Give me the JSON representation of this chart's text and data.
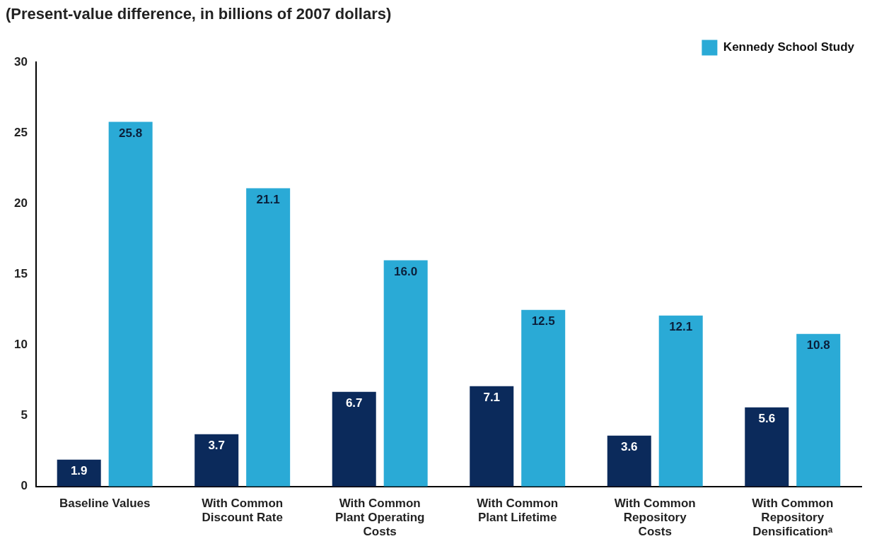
{
  "chart_data": {
    "type": "bar",
    "title": "(Present-value difference, in billions of 2007 dollars)",
    "categories": [
      "Baseline Values",
      "With Common Discount Rate",
      "With Common Plant Operating Costs",
      "With Common Plant Lifetime",
      "With Common Repository Costs",
      "With Common Repository Densificationᵃ"
    ],
    "series": [
      {
        "color": "#0b2a5b",
        "values": [
          1.9,
          3.7,
          6.7,
          7.1,
          3.6,
          5.6
        ],
        "value_labels": [
          "1.9",
          "3.7",
          "6.7",
          "7.1",
          "3.6",
          "5.6"
        ]
      },
      {
        "name": "Kennedy School Study",
        "color": "#2aaad6",
        "values": [
          25.8,
          21.1,
          16.0,
          12.5,
          12.1,
          10.8
        ],
        "value_labels": [
          "25.8",
          "21.1",
          "16.0",
          "12.5",
          "12.1",
          "10.8"
        ]
      }
    ],
    "ylim": [
      0,
      30
    ],
    "yticks": [
      0,
      5,
      10,
      15,
      20,
      25,
      30
    ],
    "grid": false,
    "legend": "top right"
  }
}
